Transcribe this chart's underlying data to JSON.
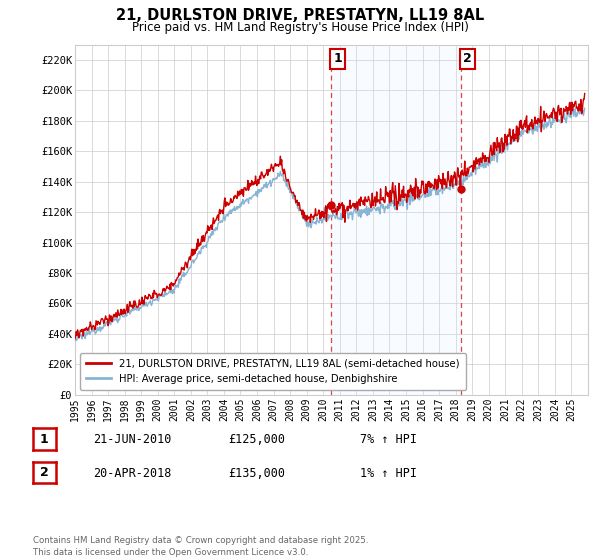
{
  "title": "21, DURLSTON DRIVE, PRESTATYN, LL19 8AL",
  "subtitle": "Price paid vs. HM Land Registry's House Price Index (HPI)",
  "ylim": [
    0,
    230000
  ],
  "xlim_start": 1995,
  "xlim_end": 2026,
  "transaction1": {
    "date": "21-JUN-2010",
    "price": 125000,
    "label": "1",
    "year": 2010.47,
    "hpi_pct": "7% ↑ HPI"
  },
  "transaction2": {
    "date": "20-APR-2018",
    "price": 135000,
    "label": "2",
    "year": 2018.3,
    "hpi_pct": "1% ↑ HPI"
  },
  "line_color_price": "#cc0000",
  "line_color_hpi": "#8ab4d4",
  "shading_color": "#ddeeff",
  "vline_color": "#dd4444",
  "background_color": "#ffffff",
  "grid_color": "#cccccc",
  "legend_label_price": "21, DURLSTON DRIVE, PRESTATYN, LL19 8AL (semi-detached house)",
  "legend_label_hpi": "HPI: Average price, semi-detached house, Denbighshire",
  "footer": "Contains HM Land Registry data © Crown copyright and database right 2025.\nThis data is licensed under the Open Government Licence v3.0.",
  "ytick_vals": [
    0,
    20000,
    40000,
    60000,
    80000,
    100000,
    120000,
    140000,
    160000,
    180000,
    200000,
    220000
  ],
  "ytick_labels": [
    "£0",
    "£20K",
    "£40K",
    "£60K",
    "£80K",
    "£100K",
    "£120K",
    "£140K",
    "£160K",
    "£180K",
    "£200K",
    "£220K"
  ]
}
